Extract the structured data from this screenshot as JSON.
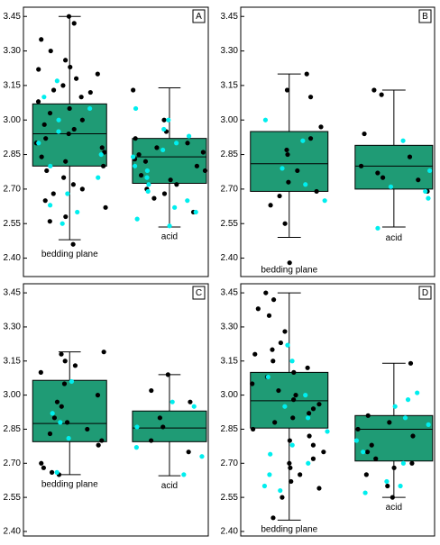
{
  "chart_data": [
    {
      "type": "box",
      "label": "A",
      "categories": [
        "bedding plane",
        "acid"
      ],
      "ylim": [
        2.32,
        3.49
      ],
      "yticks": [
        {
          "value": 2.4,
          "label": "2.40"
        },
        2.55,
        {
          "value": 2.7,
          "label": "2.70"
        },
        2.85,
        {
          "value": 3,
          "label": "3.00"
        },
        3.15,
        {
          "value": 3.3,
          "label": "3.30"
        },
        3.45
      ],
      "box_color": "#1f9b75",
      "boxes": [
        {
          "whisker_low": 2.48,
          "q1": 2.8,
          "median": 2.94,
          "q3": 3.07,
          "whisker_high": 3.45,
          "points": [
            {
              "color": "#000000",
              "values": [
                3.45,
                3.42,
                3.35,
                3.3,
                3.26,
                3.23,
                3.22,
                3.2,
                3.18,
                3.15,
                3.13,
                3.12,
                3.1,
                3.08,
                3.05,
                3.03,
                3.0,
                2.98,
                2.96,
                2.94,
                2.92,
                2.9,
                2.88,
                2.86,
                2.84,
                2.82,
                2.8,
                2.78,
                2.75,
                2.72,
                2.7,
                2.68,
                2.65,
                2.62,
                2.58,
                2.56,
                2.46
              ]
            },
            {
              "color": "#00eeee",
              "values": [
                3.17,
                3.1,
                3.05,
                3.0,
                2.95,
                2.9,
                2.85,
                2.8,
                2.75,
                2.68,
                2.63,
                2.6,
                2.55
              ]
            }
          ]
        },
        {
          "whisker_low": 2.535,
          "q1": 2.725,
          "median": 2.84,
          "q3": 2.92,
          "whisker_high": 3.14,
          "points": [
            {
              "color": "#000000",
              "values": [
                3.13,
                3.0,
                2.95,
                2.92,
                2.9,
                2.88,
                2.86,
                2.85,
                2.83,
                2.82,
                2.8,
                2.78,
                2.76,
                2.74,
                2.72,
                2.7,
                2.68,
                2.66,
                2.6
              ]
            },
            {
              "color": "#00eeee",
              "values": [
                3.05,
                3.0,
                2.96,
                2.93,
                2.9,
                2.87,
                2.84,
                2.8,
                2.78,
                2.75,
                2.72,
                2.69,
                2.65,
                2.62,
                2.6,
                2.57,
                2.54
              ]
            }
          ]
        }
      ]
    },
    {
      "type": "box",
      "label": "B",
      "categories": [
        "bedding plane",
        "acid"
      ],
      "ylim": [
        2.32,
        3.49
      ],
      "yticks": [
        {
          "value": 2.4,
          "label": "2.40"
        },
        2.55,
        {
          "value": 2.7,
          "label": "2.70"
        },
        2.85,
        {
          "value": 3,
          "label": "3.00"
        },
        3.15,
        {
          "value": 3.3,
          "label": "3.30"
        },
        3.45
      ],
      "box_color": "#1f9b75",
      "boxes": [
        {
          "whisker_low": 2.49,
          "q1": 2.69,
          "median": 2.81,
          "q3": 2.95,
          "whisker_high": 3.2,
          "points": [
            {
              "color": "#000000",
              "values": [
                3.2,
                3.13,
                3.1,
                2.97,
                2.92,
                2.87,
                2.85,
                2.78,
                2.73,
                2.69,
                2.67,
                2.63,
                2.55,
                2.38
              ]
            },
            {
              "color": "#00eeee",
              "values": [
                3.0,
                2.91,
                2.79,
                2.72,
                2.65
              ]
            }
          ]
        },
        {
          "whisker_low": 2.535,
          "q1": 2.7,
          "median": 2.8,
          "q3": 2.89,
          "whisker_high": 3.13,
          "points": [
            {
              "color": "#000000",
              "values": [
                3.13,
                3.11,
                2.94,
                2.84,
                2.8,
                2.77,
                2.75,
                2.74,
                2.69
              ]
            },
            {
              "color": "#00eeee",
              "values": [
                2.91,
                2.78,
                2.71,
                2.69,
                2.66,
                2.53
              ]
            }
          ]
        }
      ]
    },
    {
      "type": "box",
      "label": "C",
      "categories": [
        "bedding plane",
        "acid"
      ],
      "ylim": [
        2.38,
        3.49
      ],
      "yticks": [
        {
          "value": 2.4,
          "label": "2.40"
        },
        2.55,
        {
          "value": 2.7,
          "label": "2.70"
        },
        2.85,
        {
          "value": 3,
          "label": "3.00"
        },
        3.15,
        {
          "value": 3.3,
          "label": "3.30"
        },
        3.45
      ],
      "box_color": "#1f9b75",
      "boxes": [
        {
          "whisker_low": 2.65,
          "q1": 2.795,
          "median": 2.875,
          "q3": 3.065,
          "whisker_high": 3.19,
          "points": [
            {
              "color": "#000000",
              "values": [
                3.19,
                3.18,
                3.15,
                3.13,
                3.1,
                3.05,
                3.0,
                2.97,
                2.95,
                2.9,
                2.88,
                2.85,
                2.83,
                2.8,
                2.78,
                2.7,
                2.68,
                2.66,
                2.65
              ]
            },
            {
              "color": "#00eeee",
              "values": [
                3.06,
                2.92,
                2.88,
                2.81,
                2.66
              ]
            }
          ]
        },
        {
          "whisker_low": 2.645,
          "q1": 2.795,
          "median": 2.855,
          "q3": 2.93,
          "whisker_high": 3.09,
          "points": [
            {
              "color": "#000000",
              "values": [
                3.09,
                3.02,
                2.97,
                2.9,
                2.86,
                2.8,
                2.75
              ]
            },
            {
              "color": "#00eeee",
              "values": [
                2.97,
                2.95,
                2.86,
                2.77,
                2.73,
                2.65
              ]
            }
          ]
        }
      ]
    },
    {
      "type": "box",
      "label": "D",
      "categories": [
        "bedding plane",
        "acid"
      ],
      "ylim": [
        2.38,
        3.49
      ],
      "yticks": [
        {
          "value": 2.4,
          "label": "2.40"
        },
        2.55,
        {
          "value": 2.7,
          "label": "2.70"
        },
        2.85,
        {
          "value": 3,
          "label": "3.00"
        },
        3.15,
        {
          "value": 3.3,
          "label": "3.30"
        },
        3.45
      ],
      "box_color": "#1f9b75",
      "boxes": [
        {
          "whisker_low": 2.45,
          "q1": 2.855,
          "median": 2.975,
          "q3": 3.1,
          "whisker_high": 3.45,
          "points": [
            {
              "color": "#000000",
              "values": [
                3.45,
                3.42,
                3.38,
                3.35,
                3.28,
                3.23,
                3.2,
                3.18,
                3.15,
                3.12,
                3.1,
                3.08,
                3.05,
                3.02,
                3.0,
                2.98,
                2.96,
                2.94,
                2.92,
                2.9,
                2.88,
                2.85,
                2.82,
                2.8,
                2.78,
                2.75,
                2.72,
                2.7,
                2.68,
                2.65,
                2.62,
                2.59,
                2.55,
                2.46
              ]
            },
            {
              "color": "#00eeee",
              "values": [
                3.22,
                3.15,
                3.08,
                3.0,
                2.95,
                2.9,
                2.84,
                2.78,
                2.74,
                2.7,
                2.65,
                2.6,
                2.58
              ]
            }
          ]
        },
        {
          "whisker_low": 2.55,
          "q1": 2.71,
          "median": 2.85,
          "q3": 2.91,
          "whisker_high": 3.14,
          "points": [
            {
              "color": "#000000",
              "values": [
                3.14,
                2.91,
                2.88,
                2.85,
                2.82,
                2.78,
                2.75,
                2.72,
                2.7,
                2.68,
                2.65,
                2.6,
                2.55
              ]
            },
            {
              "color": "#00eeee",
              "values": [
                3.01,
                2.98,
                2.95,
                2.9,
                2.87,
                2.8,
                2.75,
                2.7,
                2.62,
                2.6,
                2.57
              ]
            }
          ]
        }
      ]
    }
  ]
}
